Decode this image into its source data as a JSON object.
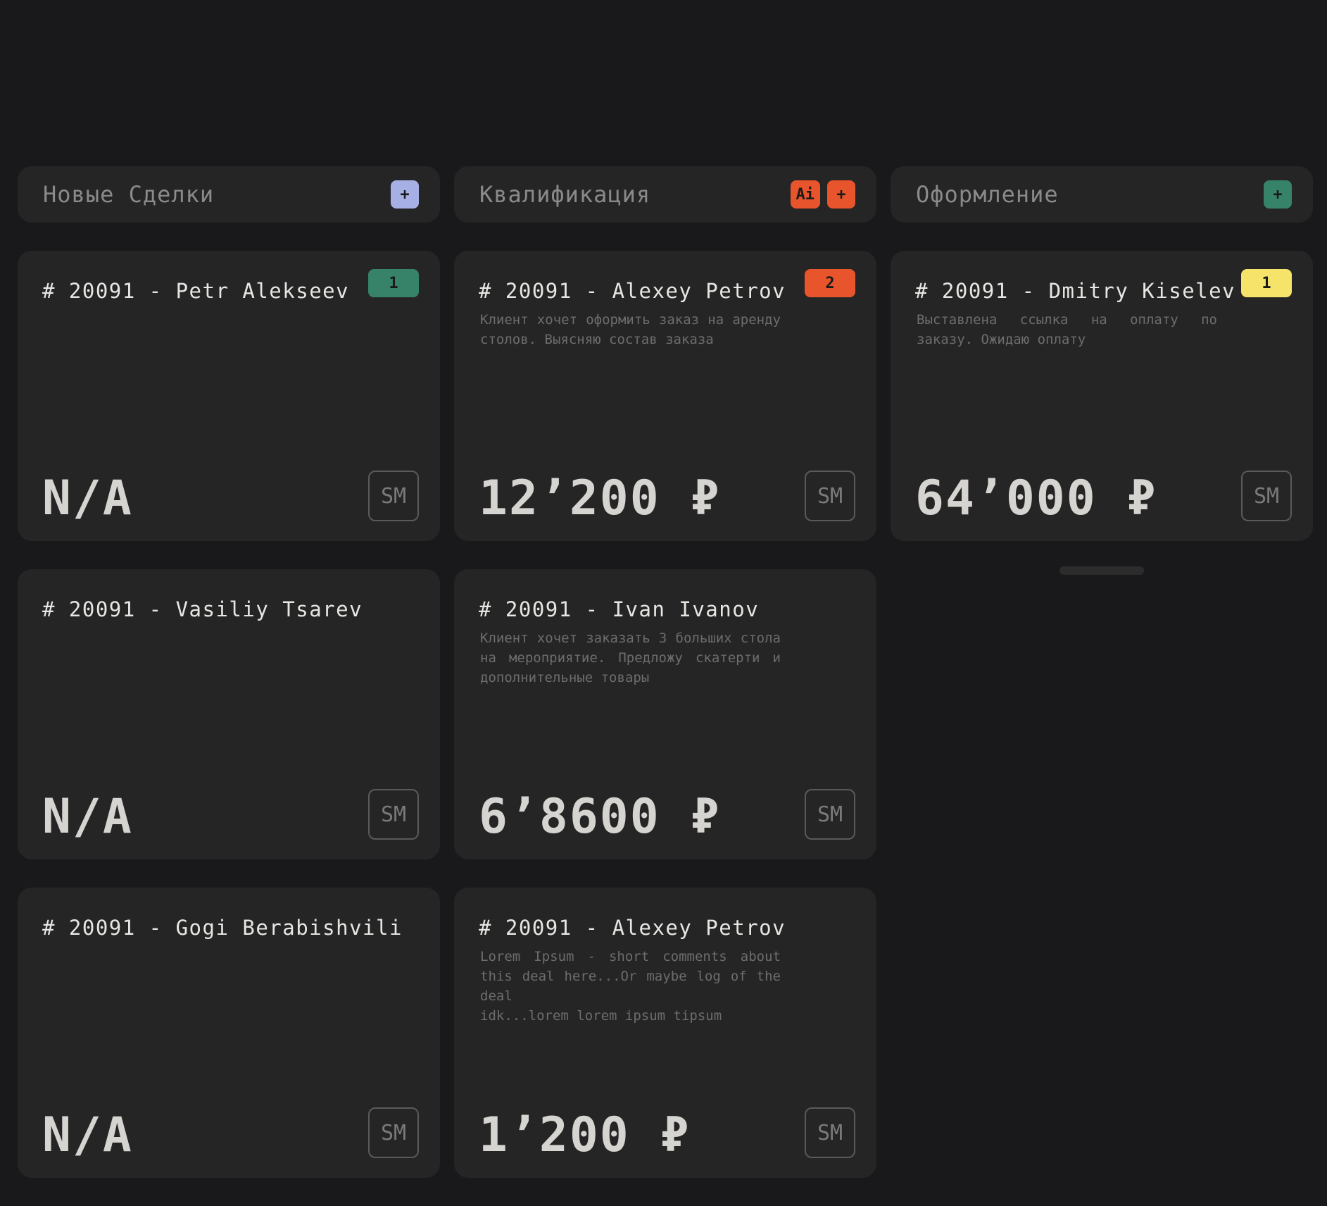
{
  "colors": {
    "lavender": "#a7b0e4",
    "orange": "#e8542b",
    "green": "#37836a",
    "yellow": "#f5e36a"
  },
  "columns": [
    {
      "title": "Новые Сделки",
      "actions": [
        {
          "label": "+",
          "color": "#a7b0e4",
          "icon": "plus-icon"
        }
      ],
      "cards": [
        {
          "title": "# 20091 - Petr Alekseev",
          "badge": "1",
          "badge_color": "#37836a",
          "desc": "",
          "amount": "N/A",
          "avatar": "SM"
        },
        {
          "title": "# 20091 - Vasiliy Tsarev",
          "badge": "",
          "badge_color": "",
          "desc": "",
          "amount": "N/A",
          "avatar": "SM"
        },
        {
          "title": "# 20091 - Gogi Berabishvili",
          "badge": "",
          "badge_color": "",
          "desc": "",
          "amount": "N/A",
          "avatar": "SM"
        }
      ]
    },
    {
      "title": "Квалификация",
      "actions": [
        {
          "label": "Ai",
          "color": "#e8542b",
          "icon": "ai-icon"
        },
        {
          "label": "+",
          "color": "#e8542b",
          "icon": "plus-icon"
        }
      ],
      "cards": [
        {
          "title": "# 20091 - Alexey Petrov",
          "badge": "2",
          "badge_color": "#e8542b",
          "desc": "Клиент хочет оформить заказ на аренду столов. Выясняю состав заказа",
          "amount": "12’200 ₽",
          "avatar": "SM"
        },
        {
          "title": "# 20091 - Ivan Ivanov",
          "badge": "",
          "badge_color": "",
          "desc": "Клиент хочет заказать 3 больших стола на мероприятие. Предложу скатерти и дополнительные товары",
          "amount": "6’8600 ₽",
          "avatar": "SM"
        },
        {
          "title": "# 20091 - Alexey Petrov",
          "badge": "",
          "badge_color": "",
          "desc": "Lorem Ipsum - short comments about this deal here...Or maybe log of the deal\nidk...lorem lorem ipsum tipsum",
          "amount": "1’200 ₽",
          "avatar": "SM"
        }
      ]
    },
    {
      "title": "Оформление",
      "actions": [
        {
          "label": "+",
          "color": "#37836a",
          "icon": "plus-icon"
        }
      ],
      "cards": [
        {
          "title": "# 20091 - Dmitry Kiselev",
          "badge": "1",
          "badge_color": "#f5e36a",
          "desc": "Выставлена ссылка на оплату по заказу. Ожидаю оплату",
          "amount": "64’000 ₽",
          "avatar": "SM"
        }
      ]
    }
  ]
}
